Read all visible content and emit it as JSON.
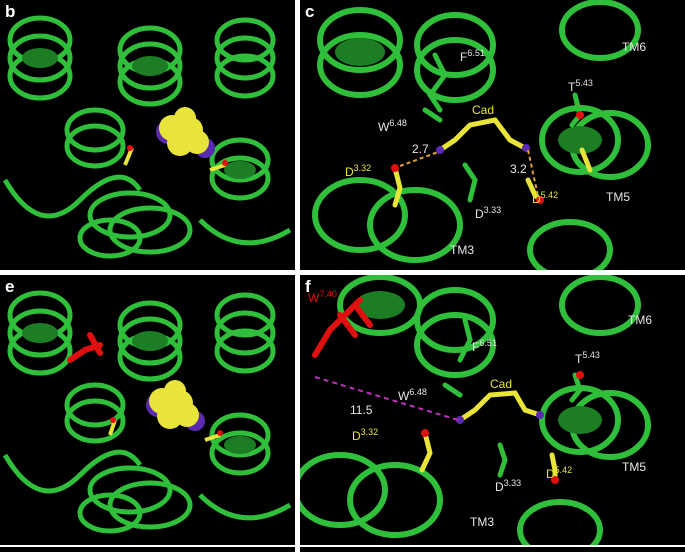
{
  "panels": {
    "b": {
      "label": "b"
    },
    "c": {
      "label": "c",
      "tm6": "TM6",
      "tm5": "TM5",
      "tm3": "TM3",
      "cad": "Cad",
      "f_base": "F",
      "f_sup": "6.51",
      "t_base": "T",
      "t_sup": "5.43",
      "w_base": "W",
      "w_sup": "6.48",
      "d332_base": "D",
      "d332_sup": "3.32",
      "d333_base": "D",
      "d333_sup": "3.33",
      "d542_base": "D",
      "d542_sup": "5.42",
      "dist1": "2.7",
      "dist2": "3.2"
    },
    "e": {
      "label": "e"
    },
    "f": {
      "label": "f",
      "w740_base": "W",
      "w740_sup": "7.40",
      "tm6": "TM6",
      "tm5": "TM5",
      "tm3": "TM3",
      "cad": "Cad",
      "f_base": "F",
      "f_sup": "6.51",
      "t_base": "T",
      "t_sup": "5.43",
      "w_base": "W",
      "w_sup": "6.48",
      "d332_base": "D",
      "d332_sup": "3.32",
      "d333_base": "D",
      "d333_sup": "3.33",
      "d542_base": "D",
      "d542_sup": "5.42",
      "dist": "11.5"
    }
  },
  "colors": {
    "helix": "#2fbf3a",
    "helix_dark": "#1c7d25",
    "ligand": "#e8e43a",
    "nitrogen": "#5a2ab0",
    "oxygen": "#e01010",
    "distance_dash_c": "#e0a030",
    "distance_dash_f": "#c030c0"
  }
}
